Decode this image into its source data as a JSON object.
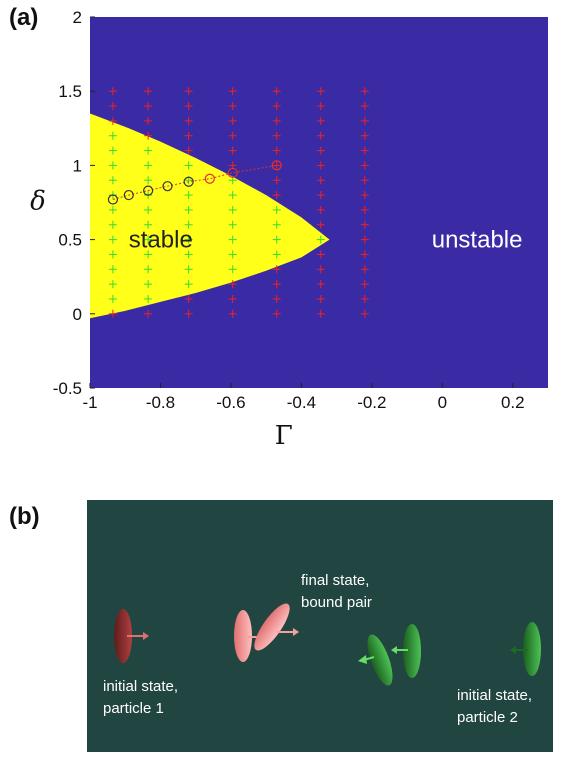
{
  "panel_a": {
    "label": "(a)",
    "chart_data": {
      "type": "heatmap",
      "xlabel": "Γ",
      "ylabel": "δ",
      "xlim": [
        -1.0,
        0.3
      ],
      "ylim": [
        -0.5,
        2.0
      ],
      "xticks": [
        "-1",
        "-0.8",
        "-0.6",
        "-0.4",
        "-0.2",
        "0",
        "0.2"
      ],
      "yticks": [
        "-0.5",
        "0",
        "0.5",
        "1",
        "1.5",
        "2"
      ],
      "grid": false,
      "colors": {
        "unstable": "#3a2aa3",
        "stable": "#ffff1a",
        "stable_marker": "#33dd33",
        "unstable_marker": "#ee2222",
        "open_circle_dark": "#333333",
        "open_circle_red": "#e03030"
      },
      "regions": [
        {
          "name": "stable",
          "label": "stable",
          "boundary_upper": [
            [
              -1.0,
              1.35
            ],
            [
              -0.9,
              1.26
            ],
            [
              -0.8,
              1.16
            ],
            [
              -0.7,
              1.05
            ],
            [
              -0.6,
              0.93
            ],
            [
              -0.5,
              0.8
            ],
            [
              -0.4,
              0.65
            ],
            [
              -0.32,
              0.5
            ]
          ],
          "boundary_lower": [
            [
              -1.0,
              -0.03
            ],
            [
              -0.9,
              0.02
            ],
            [
              -0.8,
              0.08
            ],
            [
              -0.7,
              0.14
            ],
            [
              -0.6,
              0.21
            ],
            [
              -0.5,
              0.29
            ],
            [
              -0.4,
              0.38
            ],
            [
              -0.32,
              0.5
            ]
          ]
        },
        {
          "name": "unstable",
          "label": "unstable"
        }
      ],
      "marker_columns_x": [
        -0.935,
        -0.835,
        -0.72,
        -0.595,
        -0.47,
        -0.345,
        -0.22
      ],
      "marker_y_values": [
        0.0,
        0.1,
        0.2,
        0.3,
        0.4,
        0.5,
        0.6,
        0.7,
        0.8,
        0.9,
        1.0,
        1.1,
        1.2,
        1.3,
        1.4,
        1.5
      ],
      "open_circles": [
        {
          "x": -0.935,
          "y": 0.77,
          "color": "dark"
        },
        {
          "x": -0.89,
          "y": 0.8,
          "color": "dark"
        },
        {
          "x": -0.835,
          "y": 0.83,
          "color": "dark"
        },
        {
          "x": -0.78,
          "y": 0.86,
          "color": "dark"
        },
        {
          "x": -0.72,
          "y": 0.89,
          "color": "dark"
        },
        {
          "x": -0.66,
          "y": 0.91,
          "color": "red"
        },
        {
          "x": -0.595,
          "y": 0.95,
          "color": "red"
        },
        {
          "x": -0.47,
          "y": 1.0,
          "color": "red"
        }
      ]
    }
  },
  "panel_b": {
    "label": "(b)",
    "background": "#214540",
    "captions": {
      "initial_1": "initial state,\nparticle 1",
      "final": "final state,\nbound pair",
      "initial_2": "initial state,\nparticle 2"
    },
    "disk_colors": {
      "red_dark": "#8a2a2a",
      "red_light": "#f08a8a",
      "green": "#2f9a35",
      "green_dark": "#1d6a22"
    }
  }
}
